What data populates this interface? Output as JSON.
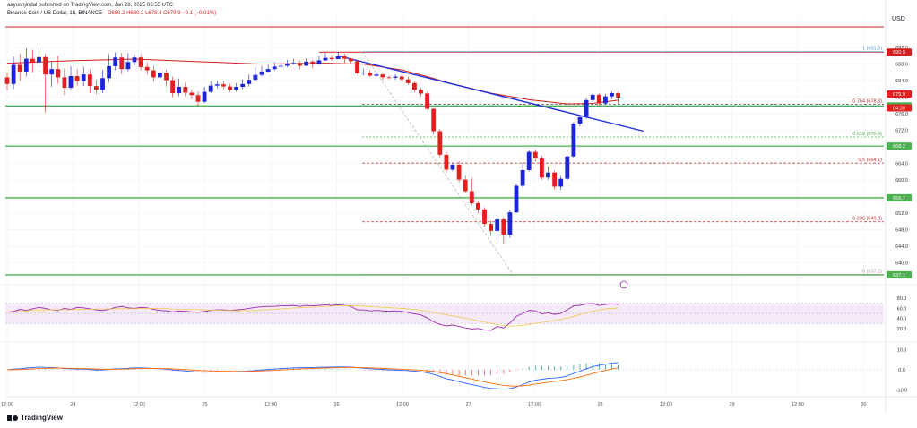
{
  "header": {
    "author_line": "aayushjindal published on TradingView.com, Jan 28, 2025 03:55 UTC",
    "symbol_line": "Binance Coin / US Dollar, 1h, BINANCE",
    "ohlc": "O680.2 H680.3 L678.4 C679.9 −0.1 (−0.01%)",
    "currency": "USD"
  },
  "footer": {
    "brand": "TradingView"
  },
  "colors": {
    "up": "#1c26d8",
    "down": "#e0211f",
    "ma": "#d11f1f",
    "support": "#4caf50",
    "trend": "#2330e0",
    "rsi": "#9c27b0",
    "fib_top": "#5b9bd5",
    "fib_mid": "#4caf50",
    "fib_low": "#9e9e9e",
    "fib_dash": "#c62828"
  },
  "chart_data": {
    "type": "candlestick",
    "x_ticks": [
      "12:00",
      "24",
      "12:00",
      "25",
      "12:00",
      "26",
      "12:00",
      "27",
      "12:00",
      "28",
      "12:00",
      "29",
      "12:00",
      "30"
    ],
    "y_ticks": [
      640.0,
      644.0,
      648.0,
      652.0,
      656.0,
      660.0,
      664.0,
      668.0,
      672.0,
      676.0,
      680.0,
      684.0,
      688.0,
      692.0
    ],
    "ylim": [
      636,
      697
    ],
    "candles": [
      [
        684.8,
        683.2,
        686.0,
        681.7
      ],
      [
        683.2,
        687.8,
        689.8,
        682.0
      ],
      [
        687.8,
        686.2,
        690.5,
        684.0
      ],
      [
        686.2,
        689.3,
        691.8,
        685.0
      ],
      [
        689.3,
        688.4,
        691.5,
        686.0
      ],
      [
        688.4,
        689.7,
        692.0,
        687.2
      ],
      [
        689.7,
        685.5,
        690.4,
        676.3
      ],
      [
        685.5,
        686.8,
        688.5,
        682.5
      ],
      [
        686.8,
        684.8,
        690.0,
        683.2
      ],
      [
        684.8,
        682.3,
        686.9,
        680.5
      ],
      [
        682.3,
        685.1,
        687.5,
        681.8
      ],
      [
        685.1,
        683.9,
        686.8,
        682.8
      ],
      [
        683.9,
        685.5,
        687.4,
        682.7
      ],
      [
        685.5,
        682.7,
        686.7,
        681.0
      ],
      [
        682.7,
        681.8,
        684.2,
        680.7
      ],
      [
        681.8,
        684.6,
        686.6,
        681.0
      ],
      [
        684.6,
        687.5,
        690.4,
        683.6
      ],
      [
        687.5,
        689.6,
        690.8,
        686.5
      ],
      [
        689.6,
        686.8,
        690.7,
        685.5
      ],
      [
        686.8,
        688.5,
        690.7,
        686.2
      ],
      [
        688.5,
        689.6,
        690.3,
        687.7
      ],
      [
        689.6,
        687.3,
        690.4,
        686.5
      ],
      [
        687.3,
        686.5,
        688.4,
        685.5
      ],
      [
        686.5,
        684.8,
        687.6,
        683.8
      ],
      [
        684.8,
        685.9,
        687.2,
        684.5
      ],
      [
        685.9,
        684.1,
        686.6,
        682.6
      ],
      [
        684.1,
        681.0,
        685.0,
        680.0
      ],
      [
        681.0,
        682.5,
        684.5,
        680.2
      ],
      [
        682.5,
        681.1,
        683.5,
        680.2
      ],
      [
        681.1,
        680.5,
        682.0,
        679.5
      ],
      [
        680.5,
        678.9,
        681.4,
        677.8
      ],
      [
        678.9,
        681.3,
        682.5,
        678.5
      ],
      [
        681.3,
        682.8,
        683.8,
        681.0
      ],
      [
        682.8,
        683.1,
        684.0,
        682.1
      ],
      [
        683.1,
        682.6,
        683.8,
        682.0
      ],
      [
        682.6,
        681.8,
        683.2,
        681.2
      ],
      [
        681.8,
        682.5,
        683.4,
        681.3
      ],
      [
        682.5,
        683.2,
        684.3,
        682.0
      ],
      [
        683.2,
        684.2,
        685.5,
        682.6
      ],
      [
        684.2,
        685.4,
        687.2,
        684.0
      ],
      [
        685.4,
        686.2,
        687.5,
        685.0
      ],
      [
        686.2,
        686.8,
        687.8,
        686.0
      ],
      [
        686.8,
        687.4,
        688.5,
        686.5
      ],
      [
        687.4,
        687.6,
        688.5,
        687.0
      ],
      [
        687.6,
        688.0,
        689.0,
        687.2
      ],
      [
        688.0,
        688.3,
        689.3,
        687.8
      ],
      [
        688.3,
        687.6,
        688.8,
        686.9
      ],
      [
        687.6,
        688.6,
        689.4,
        687.5
      ],
      [
        688.6,
        688.0,
        689.0,
        687.0
      ],
      [
        688.0,
        688.9,
        690.0,
        687.8
      ],
      [
        688.9,
        689.5,
        690.7,
        688.8
      ],
      [
        689.5,
        689.2,
        690.2,
        688.8
      ],
      [
        689.2,
        689.9,
        691.0,
        689.5
      ],
      [
        689.9,
        689.3,
        690.5,
        688.3
      ],
      [
        689.3,
        688.7,
        689.5,
        688.0
      ],
      [
        688.7,
        685.8,
        689.0,
        685.5
      ],
      [
        685.8,
        685.9,
        686.9,
        685.2
      ],
      [
        685.9,
        685.2,
        686.6,
        684.9
      ],
      [
        685.2,
        685.5,
        686.1,
        684.8
      ],
      [
        685.5,
        684.8,
        685.8,
        684.1
      ],
      [
        684.8,
        684.7,
        685.3,
        684.3
      ],
      [
        684.7,
        685.0,
        685.6,
        684.2
      ],
      [
        685.0,
        684.3,
        685.6,
        683.9
      ],
      [
        684.3,
        683.4,
        685.0,
        683.0
      ],
      [
        683.4,
        681.8,
        683.8,
        681.2
      ],
      [
        681.8,
        680.9,
        682.3,
        680.2
      ],
      [
        680.9,
        677.2,
        681.3,
        677.0
      ],
      [
        677.2,
        671.8,
        677.3,
        671.0
      ],
      [
        671.8,
        666.1,
        672.3,
        665.5
      ],
      [
        666.1,
        662.5,
        667.0,
        661.8
      ],
      [
        662.5,
        663.7,
        664.2,
        662.1
      ],
      [
        663.7,
        660.1,
        664.5,
        659.5
      ],
      [
        660.1,
        657.3,
        661.0,
        656.8
      ],
      [
        657.3,
        654.4,
        660.5,
        653.9
      ],
      [
        654.4,
        652.9,
        655.0,
        652.0
      ],
      [
        652.9,
        649.4,
        653.4,
        648.8
      ],
      [
        649.4,
        647.7,
        650.2,
        646.5
      ],
      [
        647.7,
        650.5,
        651.0,
        645.5
      ],
      [
        650.5,
        646.8,
        651.0,
        644.7
      ],
      [
        646.8,
        652.2,
        652.8,
        646.0
      ],
      [
        652.2,
        658.6,
        659.2,
        652.0
      ],
      [
        658.6,
        662.4,
        664.0,
        658.2
      ],
      [
        662.4,
        666.8,
        667.2,
        662.0
      ],
      [
        666.8,
        665.2,
        667.4,
        664.5
      ],
      [
        665.2,
        660.6,
        665.8,
        660.0
      ],
      [
        660.6,
        661.8,
        663.4,
        660.0
      ],
      [
        661.8,
        658.4,
        662.3,
        657.7
      ],
      [
        658.4,
        660.3,
        661.0,
        657.6
      ],
      [
        660.3,
        665.7,
        666.2,
        660.0
      ],
      [
        665.7,
        673.6,
        674.0,
        665.4
      ],
      [
        673.6,
        675.2,
        675.6,
        673.0
      ],
      [
        675.2,
        679.3,
        679.8,
        674.8
      ],
      [
        679.3,
        680.6,
        681.0,
        678.9
      ],
      [
        680.6,
        678.5,
        681.0,
        678.0
      ],
      [
        678.5,
        680.2,
        680.8,
        678.3
      ],
      [
        680.2,
        681.0,
        681.4,
        679.5
      ],
      [
        681.0,
        679.9,
        681.3,
        678.4
      ]
    ],
    "moving_average": [
      [
        0,
        688.2
      ],
      [
        10,
        688.8
      ],
      [
        20,
        689.2
      ],
      [
        30,
        688.6
      ],
      [
        40,
        688.0
      ],
      [
        50,
        688.2
      ],
      [
        56,
        688.0
      ],
      [
        62,
        686.6
      ],
      [
        66,
        685.0
      ],
      [
        70,
        683.2
      ],
      [
        76,
        681.0
      ],
      [
        82,
        679.4
      ],
      [
        88,
        678.4
      ],
      [
        92,
        678.5
      ],
      [
        96,
        679.3
      ]
    ],
    "horizontal_levels": [
      {
        "label": "690.9",
        "value": 690.9
      },
      {
        "label": "677.9",
        "value": 677.9
      },
      {
        "label": "668.2",
        "value": 668.2
      },
      {
        "label": "655.7",
        "value": 655.7
      },
      {
        "label": "637.1",
        "value": 637.1
      }
    ],
    "resistance_line": {
      "value": 697.0
    },
    "trend_line": {
      "from": [
        52,
        690.0
      ],
      "to": [
        100,
        671.8
      ]
    },
    "fibonacci": [
      {
        "ratio": "1",
        "value": 691.0,
        "label": "1 (691.0)"
      },
      {
        "ratio": "0.764",
        "value": 678.3,
        "label": "0.764 (678.3)"
      },
      {
        "ratio": "0.618",
        "value": 670.4,
        "label": "0.618 (670.4)"
      },
      {
        "ratio": "0.5",
        "value": 664.1,
        "label": "0.5 (664.1)"
      },
      {
        "ratio": "0.236",
        "value": 649.9,
        "label": "0.236 (649.9)"
      },
      {
        "ratio": "0",
        "value": 637.2,
        "label": "0 (637.2)"
      }
    ],
    "price_labels": [
      {
        "text": "679.9",
        "value": 679.9,
        "color": "#e0211f"
      },
      {
        "text": "04:20",
        "value": 678.3,
        "color": "#e0211f"
      }
    ],
    "rsi": {
      "y_ticks": [
        20.0,
        40.0,
        60.0,
        80.0
      ],
      "ylim": [
        0,
        100
      ],
      "band": [
        30,
        70
      ],
      "values": [
        52,
        54,
        58,
        56,
        59,
        62,
        60,
        57,
        56,
        60,
        58,
        62,
        61,
        59,
        57,
        56,
        58,
        62,
        64,
        61,
        60,
        62,
        61,
        58,
        56,
        55,
        53,
        55,
        54,
        53,
        52,
        54,
        56,
        57,
        57,
        56,
        57,
        58,
        60,
        62,
        63,
        64,
        64,
        65,
        65,
        66,
        64,
        66,
        65,
        66,
        67,
        66,
        67,
        66,
        64,
        57,
        57,
        55,
        56,
        55,
        54,
        55,
        54,
        52,
        49,
        47,
        41,
        33,
        28,
        25,
        27,
        24,
        21,
        19,
        20,
        17,
        16,
        24,
        21,
        31,
        44,
        50,
        56,
        55,
        49,
        51,
        48,
        50,
        57,
        65,
        66,
        69,
        70,
        66,
        68,
        69,
        68
      ]
    },
    "macd": {
      "y_ticks": [
        -10.0,
        0.0,
        10.0
      ],
      "ylim": [
        -12,
        12
      ]
    }
  }
}
